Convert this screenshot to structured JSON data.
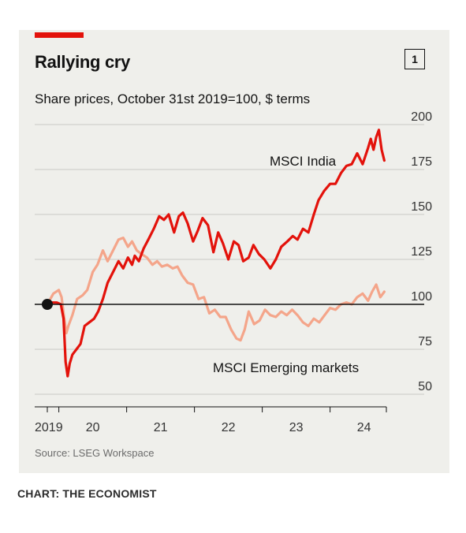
{
  "title": "Rallying cry",
  "subtitle": "Share prices, October 31st 2019=100, $ terms",
  "badge": "1",
  "source": "Source: LSEG Workspace",
  "credit": "CHART: THE ECONOMIST",
  "colors": {
    "india": "#e3120b",
    "em": "#f4a58a",
    "card": "#efefeb",
    "baseline": "#121212"
  },
  "chart_data": {
    "type": "line",
    "title": "Rallying cry",
    "subtitle": "Share prices, October 31st 2019=100, $ terms",
    "xlabel": "",
    "ylabel": "",
    "ylim": [
      50,
      200
    ],
    "yticks": [
      50,
      75,
      100,
      125,
      150,
      175,
      200
    ],
    "ytick_labels": [
      "50",
      "75",
      "100",
      "125",
      "150",
      "175",
      "200"
    ],
    "xlim": [
      2019.83,
      2025.0
    ],
    "xticks": [
      2019.83,
      2020.0,
      2021.0,
      2022.0,
      2023.0,
      2024.0,
      2024.83
    ],
    "xtick_labels": [
      {
        "label": "2019",
        "at": 2019.83
      },
      {
        "label": "20",
        "at": 2020.5
      },
      {
        "label": "21",
        "at": 2021.5
      },
      {
        "label": "22",
        "at": 2022.5
      },
      {
        "label": "23",
        "at": 2023.5
      },
      {
        "label": "24",
        "at": 2024.5
      }
    ],
    "baseline": 100,
    "grid": true,
    "start_marker": {
      "x": 2019.83,
      "y": 100
    },
    "series": [
      {
        "name": "MSCI India",
        "x": [
          2019.83,
          2019.9,
          2019.97,
          2020.03,
          2020.07,
          2020.1,
          2020.13,
          2020.16,
          2020.2,
          2020.26,
          2020.32,
          2020.38,
          2020.45,
          2020.52,
          2020.58,
          2020.65,
          2020.72,
          2020.8,
          2020.88,
          2020.95,
          2021.02,
          2021.08,
          2021.12,
          2021.18,
          2021.25,
          2021.32,
          2021.4,
          2021.48,
          2021.55,
          2021.62,
          2021.7,
          2021.77,
          2021.83,
          2021.9,
          2021.98,
          2022.05,
          2022.12,
          2022.2,
          2022.28,
          2022.35,
          2022.42,
          2022.5,
          2022.58,
          2022.65,
          2022.72,
          2022.8,
          2022.87,
          2022.95,
          2023.03,
          2023.12,
          2023.2,
          2023.28,
          2023.37,
          2023.45,
          2023.52,
          2023.6,
          2023.68,
          2023.76,
          2023.83,
          2023.91,
          2024.0,
          2024.08,
          2024.16,
          2024.24,
          2024.32,
          2024.4,
          2024.48,
          2024.56,
          2024.6,
          2024.64,
          2024.68,
          2024.72,
          2024.76,
          2024.8
        ],
        "y": [
          100,
          101,
          101,
          100,
          92,
          68,
          60,
          67,
          72,
          75,
          78,
          88,
          90,
          92,
          96,
          103,
          112,
          118,
          124,
          120,
          126,
          122,
          127,
          124,
          131,
          136,
          142,
          149,
          147,
          150,
          140,
          149,
          151,
          145,
          135,
          141,
          148,
          144,
          129,
          140,
          134,
          125,
          135,
          133,
          124,
          126,
          133,
          128,
          125,
          120,
          125,
          132,
          135,
          138,
          136,
          142,
          140,
          150,
          158,
          163,
          167,
          167,
          173,
          177,
          178,
          184,
          178,
          187,
          192,
          186,
          193,
          197,
          186,
          180
        ]
      },
      {
        "name": "MSCI Emerging markets",
        "x": [
          2019.83,
          2019.92,
          2020.0,
          2020.04,
          2020.08,
          2020.11,
          2020.14,
          2020.2,
          2020.27,
          2020.35,
          2020.42,
          2020.5,
          2020.57,
          2020.65,
          2020.72,
          2020.8,
          2020.88,
          2020.95,
          2021.02,
          2021.08,
          2021.15,
          2021.22,
          2021.3,
          2021.38,
          2021.45,
          2021.52,
          2021.6,
          2021.68,
          2021.75,
          2021.82,
          2021.9,
          2021.98,
          2022.06,
          2022.14,
          2022.22,
          2022.3,
          2022.38,
          2022.46,
          2022.54,
          2022.62,
          2022.68,
          2022.74,
          2022.8,
          2022.88,
          2022.96,
          2023.04,
          2023.12,
          2023.2,
          2023.28,
          2023.36,
          2023.44,
          2023.52,
          2023.6,
          2023.68,
          2023.76,
          2023.84,
          2023.92,
          2024.0,
          2024.08,
          2024.16,
          2024.24,
          2024.32,
          2024.4,
          2024.48,
          2024.56,
          2024.62,
          2024.68,
          2024.74,
          2024.8
        ],
        "y": [
          100,
          106,
          108,
          104,
          92,
          84,
          88,
          94,
          103,
          105,
          108,
          118,
          122,
          130,
          124,
          130,
          136,
          137,
          132,
          135,
          130,
          128,
          126,
          122,
          124,
          121,
          122,
          120,
          121,
          116,
          112,
          111,
          103,
          104,
          95,
          97,
          93,
          93,
          86,
          81,
          80,
          86,
          96,
          89,
          91,
          97,
          94,
          93,
          96,
          94,
          97,
          94,
          90,
          88,
          92,
          90,
          94,
          98,
          97,
          100,
          101,
          100,
          104,
          106,
          102,
          107,
          111,
          104,
          107
        ]
      }
    ],
    "annotations": [
      {
        "text": "MSCI India",
        "series": "MSCI India"
      },
      {
        "text": "MSCI Emerging markets",
        "series": "MSCI Emerging markets"
      }
    ]
  }
}
